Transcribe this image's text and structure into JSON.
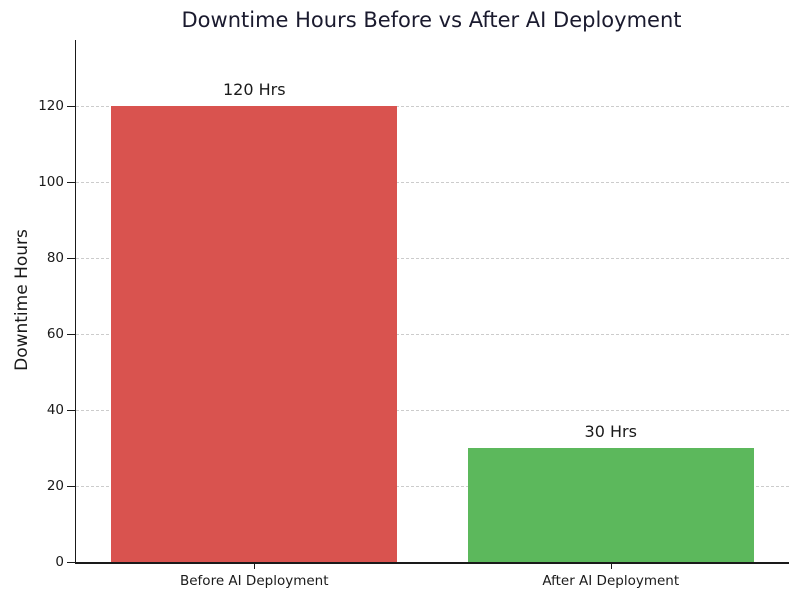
{
  "chart_data": {
    "type": "bar",
    "title": "Downtime Hours Before vs After AI Deployment",
    "xlabel": "",
    "ylabel": "Downtime Hours",
    "categories": [
      "Before AI Deployment",
      "After AI Deployment"
    ],
    "values": [
      120,
      30
    ],
    "bar_value_labels": [
      "120 Hrs",
      "30 Hrs"
    ],
    "bar_colors": [
      "#d9534f",
      "#5cb85c"
    ],
    "yticks": [
      0,
      20,
      40,
      60,
      80,
      100,
      120
    ],
    "ylim": [
      0,
      137.5
    ],
    "grid": {
      "axis": "y",
      "style": "dashed",
      "color": "#cccccc"
    },
    "layout_hints": {
      "legend": "none",
      "spines": "left and bottom only",
      "bar_gap": "wide bars, two categories"
    },
    "colors": {
      "title": "#1a1a2e",
      "text": "#1a1a1a",
      "axis": "#1a1a1a",
      "background": "#ffffff"
    }
  }
}
